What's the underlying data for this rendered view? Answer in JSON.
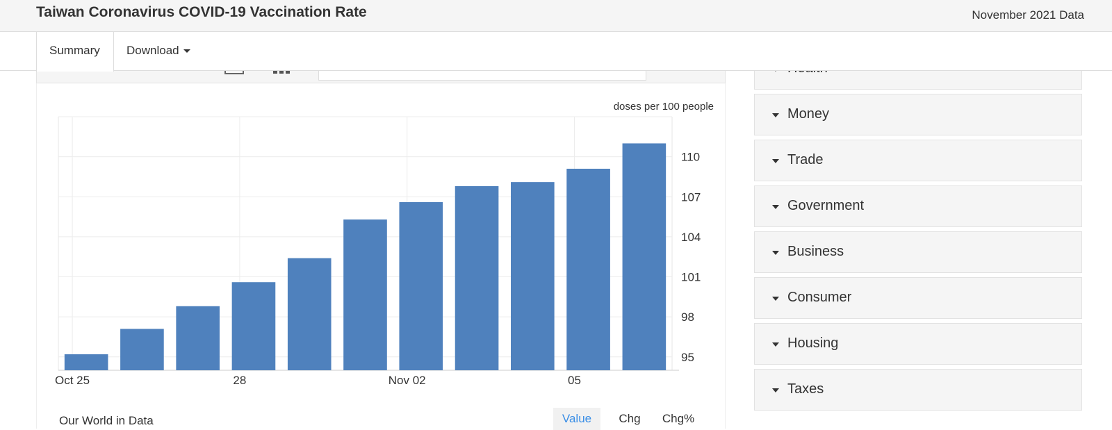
{
  "header": {
    "title": "Taiwan Coronavirus COVID-19 Vaccination Rate",
    "date_label": "November 2021 Data"
  },
  "nav": {
    "tabs": [
      {
        "label": "Summary"
      },
      {
        "label": "Download"
      }
    ]
  },
  "chart_data": {
    "type": "bar",
    "unit_label": "doses per 100 people",
    "x_tick_labels": [
      "Oct 25",
      "28",
      "Nov 02",
      "05"
    ],
    "values": [
      95.2,
      97.1,
      98.8,
      100.6,
      102.4,
      105.3,
      106.6,
      107.8,
      108.1,
      109.1,
      111.0
    ],
    "y_ticks": [
      95,
      98,
      101,
      104,
      107,
      110
    ],
    "ylim": [
      94,
      113
    ],
    "bar_color": "#4f81bd",
    "grid": true
  },
  "footer": {
    "source": "Our World in Data",
    "buttons": {
      "value": "Value",
      "chg": "Chg",
      "chg_pct": "Chg%"
    }
  },
  "sidebar": {
    "items": [
      {
        "label": "Health"
      },
      {
        "label": "Money"
      },
      {
        "label": "Trade"
      },
      {
        "label": "Government"
      },
      {
        "label": "Business"
      },
      {
        "label": "Consumer"
      },
      {
        "label": "Housing"
      },
      {
        "label": "Taxes"
      }
    ]
  }
}
